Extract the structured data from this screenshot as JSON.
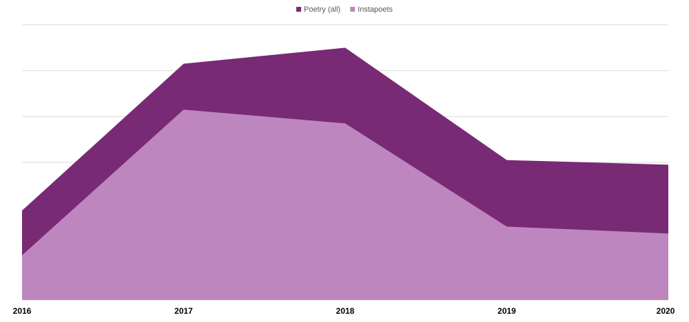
{
  "chart_data": {
    "type": "area",
    "stacked": false,
    "categories": [
      "2016",
      "2017",
      "2018",
      "2019",
      "2020"
    ],
    "series": [
      {
        "name": "Poetry (all)",
        "values": [
          3.9,
          10.3,
          11.0,
          6.1,
          5.9
        ],
        "color": "#782a75"
      },
      {
        "name": "Instapoets",
        "values": [
          1.95,
          8.3,
          7.7,
          3.2,
          2.9
        ],
        "color": "#be86bf"
      }
    ],
    "title": "",
    "xlabel": "",
    "ylabel": "",
    "ylim": [
      0,
      12
    ],
    "y_ticks": [
      0,
      2,
      4,
      6,
      8,
      10,
      12
    ],
    "y_tick_labels_visible": false,
    "grid": true,
    "legend_position": "top-center",
    "gridline_color": "#d9d9d9"
  }
}
